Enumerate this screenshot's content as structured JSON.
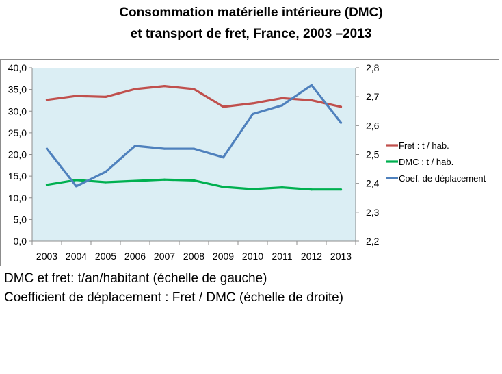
{
  "title_line1": "Consommation matérielle intérieure (DMC)",
  "title_line2": "et transport de fret, France, 2003 –2013",
  "note_line1": "DMC et fret: t/an/habitant (échelle de gauche)",
  "note_line2": "Coefficient de déplacement : Fret / DMC (échelle de droite)",
  "colors": {
    "plot_bg": "#dbeef4",
    "fret": "#c0504d",
    "dmc": "#00b050",
    "coef": "#4f81bd"
  },
  "chart_data": {
    "type": "line",
    "categories": [
      "2003",
      "2004",
      "2005",
      "2006",
      "2007",
      "2008",
      "2009",
      "2010",
      "2011",
      "2012",
      "2013"
    ],
    "y_left": {
      "range": [
        0,
        40
      ],
      "ticks": [
        "0,0",
        "5,0",
        "10,0",
        "15,0",
        "20,0",
        "25,0",
        "30,0",
        "35,0",
        "40,0"
      ]
    },
    "y_right": {
      "range": [
        2.2,
        2.8
      ],
      "ticks": [
        "2,2",
        "2,3",
        "2,4",
        "2,5",
        "2,6",
        "2,7",
        "2,8"
      ]
    },
    "gridlines": false,
    "legend_position": "right",
    "series": [
      {
        "name": "Fret : t / hab.",
        "axis": "left",
        "values": [
          32.6,
          33.5,
          33.3,
          35.1,
          35.8,
          35.1,
          31.0,
          31.8,
          33.0,
          32.5,
          31.0
        ]
      },
      {
        "name": "DMC : t / hab.",
        "axis": "left",
        "values": [
          13.0,
          14.1,
          13.6,
          13.9,
          14.2,
          14.0,
          12.5,
          12.0,
          12.4,
          11.9,
          11.9
        ]
      },
      {
        "name": "Coef. de déplacement",
        "axis": "right",
        "values": [
          2.52,
          2.39,
          2.44,
          2.53,
          2.52,
          2.52,
          2.49,
          2.64,
          2.67,
          2.74,
          2.61
        ]
      }
    ]
  }
}
